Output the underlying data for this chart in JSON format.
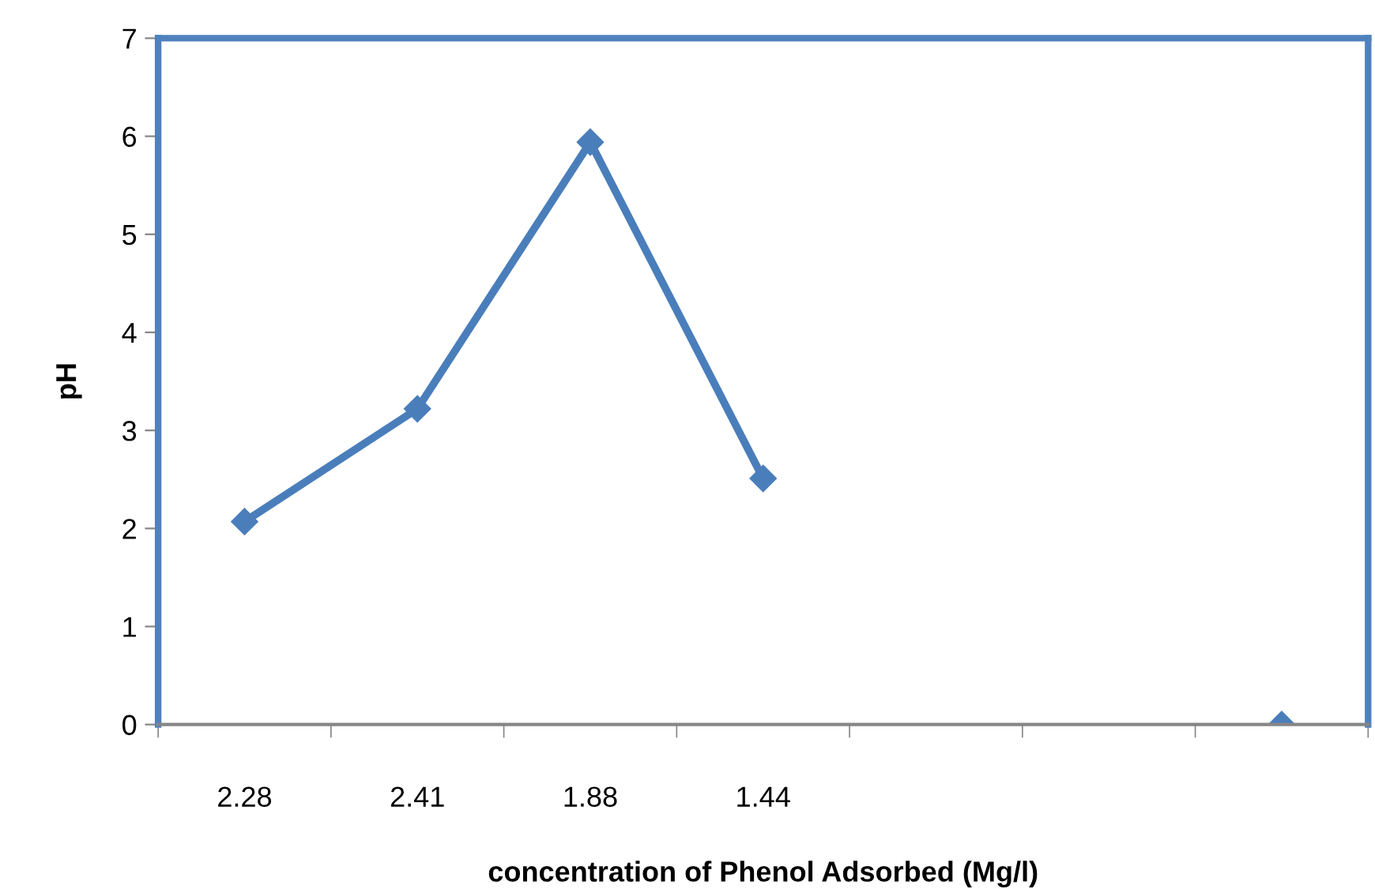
{
  "chart_data": {
    "type": "line",
    "xlabel": "concentration of Phenol Adsorbed (Mg/l)",
    "ylabel": "pH",
    "categories": [
      "2.28",
      "2.41",
      "1.88",
      "1.44",
      null,
      null,
      null
    ],
    "series": [
      {
        "color": "#4a7ebb",
        "values": [
          2.07,
          3.22,
          5.94,
          2.51,
          null,
          null,
          0
        ]
      }
    ],
    "ylim": [
      0,
      7
    ],
    "yticks": [
      0,
      1,
      2,
      3,
      4,
      5,
      6,
      7
    ],
    "grid": false,
    "legend": false,
    "marker": "diamond",
    "line_style": "solid"
  }
}
